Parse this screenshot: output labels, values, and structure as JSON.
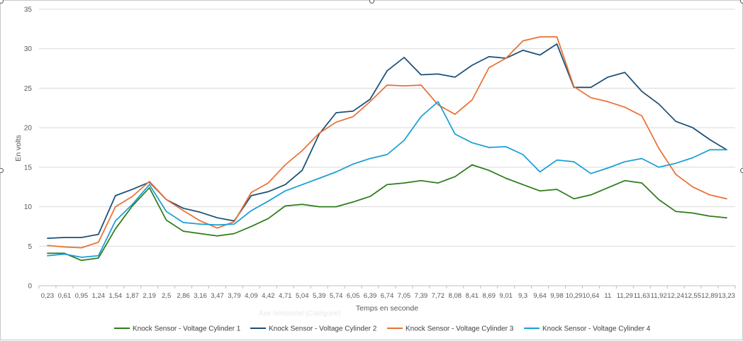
{
  "chart_data": {
    "type": "line",
    "xlabel": "Temps en seconde",
    "ylabel": "En volts",
    "ghost_label": "Axe horizontal (Catégorie)",
    "ylim": [
      0,
      35
    ],
    "yticks": [
      0,
      5,
      10,
      15,
      20,
      25,
      30,
      35
    ],
    "grid": "horizontal",
    "legend_position": "bottom",
    "categories": [
      "0,23",
      "0,61",
      "0,95",
      "1,24",
      "1,54",
      "1,87",
      "2,19",
      "2,5",
      "2,86",
      "3,16",
      "3,47",
      "3,79",
      "4,09",
      "4,42",
      "4,71",
      "5,04",
      "5,39",
      "5,74",
      "6,05",
      "6,39",
      "6,74",
      "7,05",
      "7,39",
      "7,72",
      "8,08",
      "8,41",
      "8,69",
      "9,01",
      "9,3",
      "9,64",
      "9,98",
      "10,29",
      "10,64",
      "11",
      "11,29",
      "11,63",
      "11,92",
      "12,24",
      "12,55",
      "12,89",
      "13,23"
    ],
    "series": [
      {
        "name": "Knock Sensor - Voltage Cylinder 1",
        "color": "#2e7d1a",
        "values": [
          4.1,
          4.1,
          3.2,
          3.5,
          7.2,
          10.1,
          12.4,
          8.3,
          6.9,
          6.6,
          6.3,
          6.6,
          7.5,
          8.5,
          10.1,
          10.3,
          10.0,
          10.0,
          10.6,
          11.3,
          12.8,
          13.0,
          13.3,
          13.0,
          13.8,
          15.3,
          14.6,
          13.6,
          12.8,
          12.0,
          12.2,
          11.0,
          11.5,
          12.4,
          13.3,
          13.0,
          10.9,
          9.4,
          9.2,
          8.8,
          8.6
        ]
      },
      {
        "name": "Knock Sensor - Voltage Cylinder 2",
        "color": "#1b4f78",
        "values": [
          6.0,
          6.1,
          6.1,
          6.5,
          11.4,
          12.2,
          13.1,
          10.9,
          9.8,
          9.3,
          8.6,
          8.2,
          11.4,
          11.9,
          12.8,
          14.6,
          19.2,
          21.9,
          22.1,
          23.6,
          27.2,
          28.9,
          26.7,
          26.8,
          26.4,
          27.9,
          29.0,
          28.8,
          29.8,
          29.2,
          30.6,
          25.1,
          25.1,
          26.4,
          27.0,
          24.6,
          23.0,
          20.8,
          20.0,
          18.5,
          17.2
        ]
      },
      {
        "name": "Knock Sensor - Voltage Cylinder 3",
        "color": "#ea7134",
        "values": [
          5.1,
          4.9,
          4.8,
          5.5,
          10.0,
          11.3,
          13.2,
          10.9,
          9.5,
          8.2,
          7.3,
          8.1,
          11.8,
          13.0,
          15.3,
          17.1,
          19.3,
          20.7,
          21.4,
          23.3,
          25.4,
          25.3,
          25.4,
          22.9,
          21.7,
          23.5,
          27.6,
          28.8,
          31.0,
          31.5,
          31.5,
          25.2,
          23.8,
          23.3,
          22.6,
          21.5,
          17.4,
          14.1,
          12.5,
          11.5,
          11.0
        ]
      },
      {
        "name": "Knock Sensor - Voltage Cylinder 4",
        "color": "#1a9fd6",
        "values": [
          3.8,
          4.0,
          3.6,
          3.8,
          8.2,
          10.3,
          12.8,
          9.4,
          8.0,
          7.8,
          7.7,
          7.8,
          9.5,
          10.7,
          12.0,
          12.8,
          13.6,
          14.4,
          15.4,
          16.1,
          16.6,
          18.4,
          21.4,
          23.3,
          19.2,
          18.1,
          17.5,
          17.6,
          16.6,
          14.4,
          15.9,
          15.7,
          14.2,
          14.9,
          15.7,
          16.1,
          15.0,
          15.5,
          16.2,
          17.2,
          17.2
        ]
      }
    ]
  }
}
